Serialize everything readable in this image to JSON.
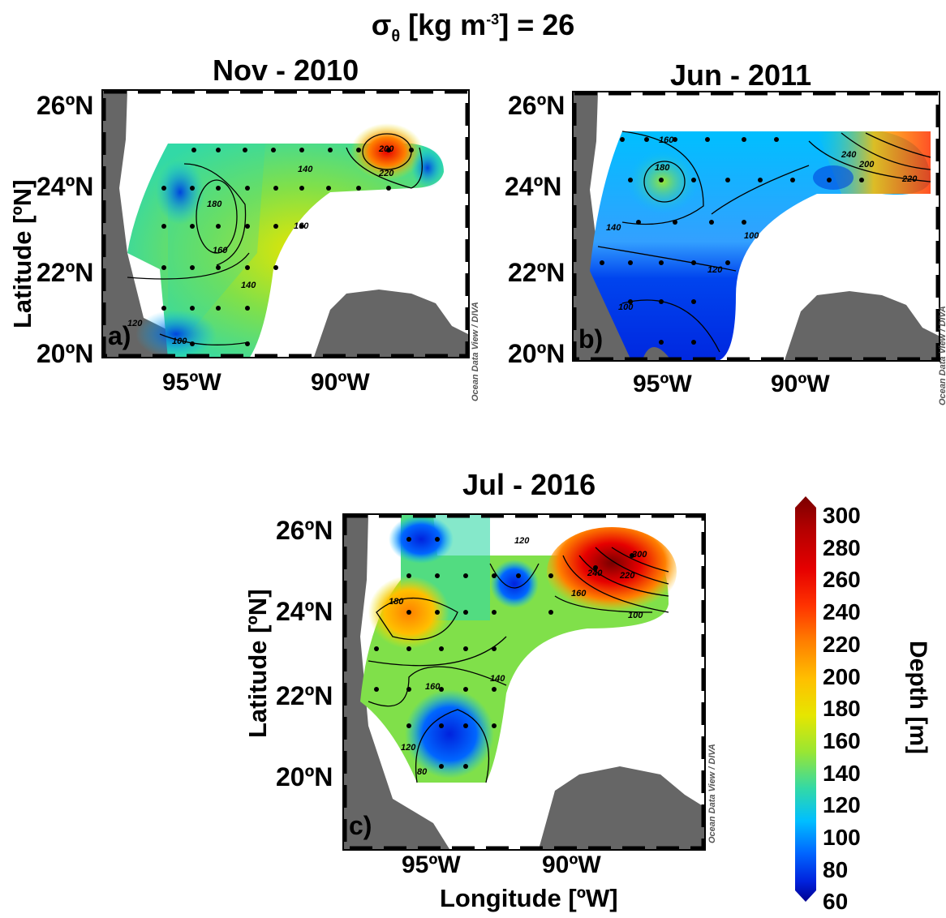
{
  "figure": {
    "title_main": "σ",
    "title_sub": "θ",
    "title_rest": " [kg m",
    "title_sup": "-3",
    "title_end": "] = 26"
  },
  "panels": [
    {
      "id": "a",
      "title": "Nov - 2010",
      "label": "a)",
      "lat_ticks": [
        "26ºN",
        "24ºN",
        "22ºN",
        "20ºN"
      ],
      "lon_ticks": [
        "95ºW",
        "90ºW"
      ],
      "contours": [
        "180",
        "160",
        "140",
        "160",
        "140",
        "100",
        "120",
        "200",
        "220",
        "100",
        "120",
        "140",
        "120",
        "200"
      ]
    },
    {
      "id": "b",
      "title": "Jun - 2011",
      "label": "b)",
      "lat_ticks": [
        "26ºN",
        "24ºN",
        "22ºN",
        "20ºN"
      ],
      "lon_ticks": [
        "95ºW",
        "90ºW"
      ],
      "contours": [
        "160",
        "180",
        "140",
        "100",
        "120",
        "100",
        "240",
        "200",
        "220",
        "200"
      ]
    },
    {
      "id": "c",
      "title": "Jul - 2016",
      "label": "c)",
      "lat_ticks": [
        "26ºN",
        "24ºN",
        "22ºN",
        "20ºN"
      ],
      "lon_ticks": [
        "95ºW",
        "90ºW"
      ],
      "contours": [
        "180",
        "160",
        "140",
        "120",
        "120",
        "80",
        "300",
        "240",
        "220",
        "160",
        "100",
        "120"
      ]
    }
  ],
  "axes": {
    "ylabel": "Latitude [ºN]",
    "xlabel": "Longitude [ºW]"
  },
  "credit": "Ocean Data View / DIVA",
  "colorbar": {
    "label": "Depth [m]",
    "ticks": [
      "300",
      "280",
      "260",
      "240",
      "220",
      "200",
      "180",
      "160",
      "140",
      "120",
      "100",
      "80",
      "60"
    ],
    "colors": [
      "#7a0000",
      "#b30000",
      "#e60000",
      "#ff3300",
      "#ff8000",
      "#ffbf00",
      "#e6e600",
      "#99e633",
      "#33d9a6",
      "#00bfff",
      "#0066ff",
      "#0022dd",
      "#00008f"
    ]
  }
}
